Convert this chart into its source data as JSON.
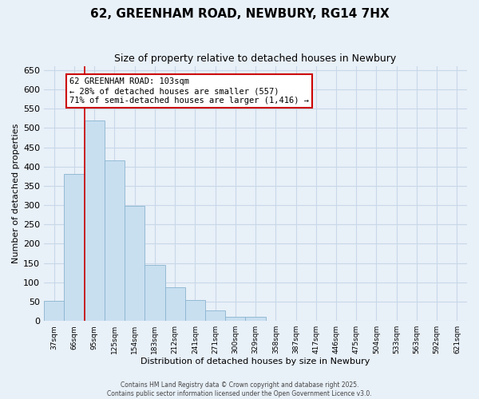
{
  "title": "62, GREENHAM ROAD, NEWBURY, RG14 7HX",
  "subtitle": "Size of property relative to detached houses in Newbury",
  "xlabel": "Distribution of detached houses by size in Newbury",
  "ylabel": "Number of detached properties",
  "bin_labels": [
    "37sqm",
    "66sqm",
    "95sqm",
    "125sqm",
    "154sqm",
    "183sqm",
    "212sqm",
    "241sqm",
    "271sqm",
    "300sqm",
    "329sqm",
    "358sqm",
    "387sqm",
    "417sqm",
    "446sqm",
    "475sqm",
    "504sqm",
    "533sqm",
    "563sqm",
    "592sqm",
    "621sqm"
  ],
  "bar_values": [
    52,
    380,
    520,
    415,
    298,
    145,
    87,
    55,
    28,
    10,
    10,
    0,
    0,
    0,
    0,
    0,
    0,
    0,
    0,
    0,
    0
  ],
  "bar_color": "#c8dff0",
  "bar_edge_color": "#8ab4d0",
  "grid_color": "#c8d8e8",
  "background_color": "#e8f0f8",
  "marker_line_color": "#cc0000",
  "ylim": [
    0,
    660
  ],
  "yticks": [
    0,
    50,
    100,
    150,
    200,
    250,
    300,
    350,
    400,
    450,
    500,
    550,
    600,
    650
  ],
  "annotation_title": "62 GREENHAM ROAD: 103sqm",
  "annotation_line1": "← 28% of detached houses are smaller (557)",
  "annotation_line2": "71% of semi-detached houses are larger (1,416) →",
  "annotation_box_color": "#ffffff",
  "annotation_box_edge": "#cc0000",
  "footer_line1": "Contains HM Land Registry data © Crown copyright and database right 2025.",
  "footer_line2": "Contains public sector information licensed under the Open Government Licence v3.0.",
  "title_fontsize": 11,
  "subtitle_fontsize": 9,
  "ylabel_fontsize": 8,
  "xlabel_fontsize": 8
}
